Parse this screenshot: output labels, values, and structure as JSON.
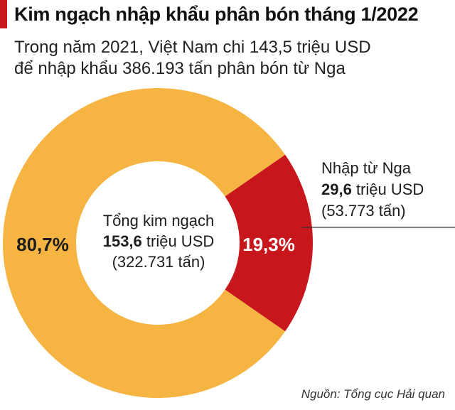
{
  "header": {
    "title": "Kim ngạch nhập khẩu phân bón tháng 1/2022",
    "subtitle_line1": "Trong năm 2021, Việt Nam chi 143,5 triệu USD",
    "subtitle_line2": "để nhập khẩu 386.193 tấn phân bón từ Nga"
  },
  "center": {
    "line1": "Tổng kim ngạch",
    "value": "153,6",
    "unit": " triệu USD",
    "line3": "(322.731 tấn)"
  },
  "callout": {
    "line1": "Nhập từ Nga",
    "value": "29,6",
    "unit": " triệu USD",
    "line3": "(53.773 tấn)"
  },
  "source": "Nguồn: Tổng cục Hải quan",
  "colors": {
    "accent": "#c8161d",
    "other": "#f6b443",
    "russia": "#c8161d",
    "text": "#1d1d1d"
  },
  "chart_data": {
    "type": "pie",
    "donut": true,
    "categories": [
      "",
      "Nhập từ Nga"
    ],
    "values": [
      80.7,
      19.3
    ],
    "labels": [
      "80,7%",
      "19,3%"
    ],
    "unit": "%"
  }
}
